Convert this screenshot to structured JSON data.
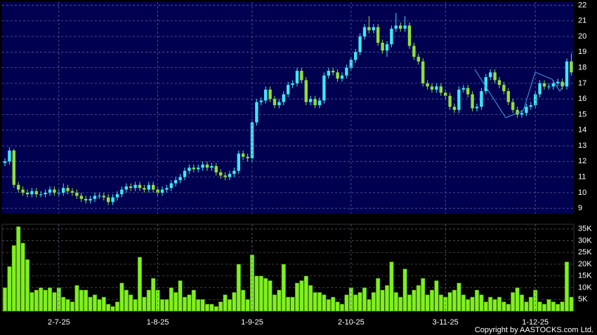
{
  "chart_data": [
    {
      "type": "candlestick",
      "up_color": "#3ee6f5",
      "down_color": "#8fe03a",
      "background": "#000050",
      "grid": true,
      "ylim": [
        8.65,
        22.2
      ],
      "yticks": [
        9,
        10,
        11,
        12,
        13,
        14,
        15,
        16,
        17,
        18,
        19,
        20,
        21,
        22
      ],
      "open": [
        11.9,
        12.0,
        12.7,
        10.5,
        10.2,
        10.0,
        9.9,
        10.1,
        9.9,
        9.9,
        10.0,
        10.2,
        10.0,
        10.0,
        10.3,
        10.1,
        10.0,
        9.8,
        9.6,
        9.5,
        9.6,
        9.8,
        9.8,
        9.7,
        9.4,
        9.7,
        9.9,
        10.2,
        10.4,
        10.3,
        10.5,
        10.3,
        10.2,
        10.5,
        10.2,
        10.0,
        10.2,
        10.3,
        10.6,
        10.8,
        11.0,
        11.4,
        11.6,
        11.5,
        11.6,
        11.8,
        11.6,
        11.7,
        11.3,
        11.1,
        11.0,
        11.2,
        11.4,
        12.5,
        12.3,
        12.2,
        14.5,
        15.8,
        15.9,
        16.6,
        16.0,
        15.6,
        15.8,
        16.3,
        16.9,
        17.0,
        17.8,
        17.2,
        15.8,
        16.0,
        15.6,
        15.9,
        17.5,
        17.8,
        17.7,
        17.3,
        17.5,
        18.0,
        18.5,
        19.0,
        20.0,
        20.6,
        20.4,
        20.6,
        19.6,
        19.1,
        19.5,
        20.5,
        20.7,
        20.5,
        20.7,
        19.4,
        18.7,
        18.4,
        17.0,
        16.8,
        16.6,
        16.8,
        16.4,
        16.2,
        15.5,
        15.3,
        16.6,
        16.7,
        16.3,
        15.4,
        15.5,
        16.5,
        17.4,
        17.7,
        17.2,
        16.9,
        16.5,
        15.8,
        15.3,
        15.0,
        15.1,
        15.5,
        15.6,
        16.3,
        17.0,
        16.8,
        16.8,
        17.0,
        17.1,
        16.8,
        18.4
      ],
      "high": [
        12.2,
        12.9,
        12.8,
        10.7,
        10.4,
        10.2,
        10.3,
        10.3,
        10.1,
        10.2,
        10.4,
        10.4,
        10.2,
        10.6,
        10.5,
        10.3,
        10.2,
        10.0,
        9.8,
        9.8,
        10.0,
        10.0,
        10.0,
        9.9,
        9.9,
        10.1,
        10.4,
        10.6,
        10.6,
        10.7,
        10.7,
        10.5,
        10.7,
        10.7,
        10.4,
        10.4,
        10.5,
        10.8,
        11.0,
        11.2,
        11.6,
        11.8,
        11.8,
        11.8,
        12.0,
        12.0,
        11.9,
        11.9,
        11.5,
        11.3,
        11.4,
        11.6,
        12.7,
        12.7,
        12.5,
        14.7,
        16.0,
        16.1,
        16.8,
        16.8,
        16.2,
        16.0,
        16.5,
        17.1,
        17.2,
        18.0,
        18.0,
        17.4,
        16.2,
        16.2,
        16.1,
        17.7,
        18.0,
        18.0,
        17.9,
        17.7,
        18.2,
        18.7,
        19.2,
        20.2,
        20.8,
        21.3,
        20.8,
        20.8,
        19.8,
        19.7,
        20.7,
        21.5,
        20.9,
        21.3,
        20.9,
        19.6,
        18.9,
        18.6,
        17.2,
        17.0,
        17.0,
        17.0,
        16.6,
        16.4,
        15.7,
        16.8,
        16.9,
        16.9,
        16.5,
        15.7,
        16.7,
        17.6,
        17.9,
        17.9,
        17.4,
        17.1,
        16.7,
        16.0,
        15.5,
        15.3,
        15.7,
        15.8,
        16.5,
        17.2,
        17.2,
        17.0,
        17.2,
        17.3,
        17.3,
        18.6,
        18.9
      ],
      "low": [
        11.7,
        11.8,
        10.3,
        10.0,
        9.8,
        9.7,
        9.7,
        9.7,
        9.7,
        9.7,
        9.8,
        9.8,
        9.8,
        9.8,
        9.9,
        9.8,
        9.6,
        9.4,
        9.3,
        9.3,
        9.4,
        9.6,
        9.5,
        9.2,
        9.2,
        9.5,
        9.7,
        10.0,
        10.1,
        10.1,
        10.1,
        10.0,
        10.0,
        10.0,
        9.8,
        9.8,
        10.0,
        10.1,
        10.4,
        10.6,
        10.8,
        11.2,
        11.3,
        11.3,
        11.4,
        11.4,
        11.4,
        11.1,
        10.9,
        10.8,
        10.8,
        11.0,
        11.2,
        12.1,
        12.0,
        12.0,
        14.3,
        15.6,
        15.7,
        15.8,
        15.4,
        15.4,
        15.6,
        16.1,
        16.7,
        16.8,
        17.0,
        15.6,
        15.6,
        15.4,
        15.4,
        15.7,
        17.3,
        17.5,
        17.1,
        17.1,
        17.3,
        17.8,
        18.3,
        18.8,
        19.8,
        20.2,
        20.2,
        19.4,
        18.9,
        18.7,
        19.3,
        20.3,
        20.3,
        20.3,
        19.2,
        18.5,
        18.2,
        16.8,
        16.6,
        16.4,
        16.4,
        16.2,
        16.0,
        15.3,
        15.1,
        15.1,
        16.4,
        16.1,
        15.2,
        15.2,
        15.3,
        16.3,
        17.2,
        17.0,
        16.7,
        16.3,
        15.6,
        15.1,
        14.8,
        14.8,
        14.9,
        15.3,
        15.4,
        16.1,
        16.6,
        16.6,
        16.6,
        16.8,
        16.6,
        16.6,
        17.5
      ],
      "close": [
        12.0,
        12.7,
        10.5,
        10.2,
        10.0,
        9.9,
        10.1,
        9.9,
        9.9,
        10.0,
        10.2,
        10.0,
        10.0,
        10.3,
        10.1,
        10.0,
        9.8,
        9.6,
        9.5,
        9.6,
        9.8,
        9.8,
        9.7,
        9.4,
        9.7,
        9.9,
        10.2,
        10.4,
        10.3,
        10.5,
        10.3,
        10.2,
        10.5,
        10.2,
        10.0,
        10.2,
        10.3,
        10.6,
        10.8,
        11.0,
        11.4,
        11.6,
        11.5,
        11.6,
        11.8,
        11.6,
        11.7,
        11.3,
        11.1,
        11.0,
        11.2,
        11.4,
        12.5,
        12.3,
        12.2,
        14.5,
        15.8,
        15.9,
        16.6,
        16.0,
        15.6,
        15.8,
        16.3,
        16.9,
        17.0,
        17.8,
        17.2,
        15.8,
        16.0,
        15.6,
        15.9,
        17.5,
        17.8,
        17.7,
        17.3,
        17.5,
        18.0,
        18.5,
        19.0,
        20.0,
        20.6,
        20.4,
        20.6,
        19.6,
        19.1,
        19.5,
        20.5,
        20.7,
        20.5,
        20.7,
        19.4,
        18.7,
        18.4,
        17.0,
        16.8,
        16.6,
        16.8,
        16.4,
        16.2,
        15.5,
        15.3,
        16.6,
        16.7,
        16.3,
        15.4,
        15.5,
        16.5,
        17.4,
        17.7,
        17.2,
        16.9,
        16.5,
        15.8,
        15.3,
        15.0,
        15.1,
        15.5,
        15.6,
        16.3,
        17.0,
        16.8,
        16.8,
        17.0,
        17.1,
        16.8,
        18.4,
        17.7
      ]
    },
    {
      "type": "bar",
      "color": "#7ff020",
      "grid": true,
      "ylim": [
        0,
        37000
      ],
      "yticks": [
        {
          "value": 5000,
          "label": "5K"
        },
        {
          "value": 10000,
          "label": "10K"
        },
        {
          "value": 15000,
          "label": "15K"
        },
        {
          "value": 20000,
          "label": "20K"
        },
        {
          "value": 25000,
          "label": "25K"
        },
        {
          "value": 30000,
          "label": "30K"
        },
        {
          "value": 35000,
          "label": "35K"
        }
      ],
      "categories": [
        null,
        null,
        null,
        null,
        null,
        null,
        null,
        null,
        null,
        null,
        null,
        null,
        "2-7-25",
        null,
        null,
        null,
        null,
        null,
        null,
        null,
        null,
        null,
        null,
        null,
        null,
        null,
        null,
        null,
        null,
        null,
        null,
        null,
        null,
        null,
        "1-8-25",
        null,
        null,
        null,
        null,
        null,
        null,
        null,
        null,
        null,
        null,
        null,
        null,
        null,
        null,
        null,
        null,
        null,
        null,
        null,
        null,
        "1-9-25",
        null,
        null,
        null,
        null,
        null,
        null,
        null,
        null,
        null,
        null,
        null,
        null,
        null,
        null,
        null,
        null,
        null,
        null,
        null,
        null,
        null,
        "2-10-25",
        null,
        null,
        null,
        null,
        null,
        null,
        null,
        null,
        null,
        null,
        null,
        null,
        null,
        null,
        null,
        null,
        null,
        null,
        null,
        null,
        "3-11-25",
        null,
        null,
        null,
        null,
        null,
        null,
        null,
        null,
        null,
        null,
        null,
        null,
        null,
        null,
        null,
        null,
        null,
        null,
        null,
        "1-12-25",
        null,
        null,
        null,
        null,
        null,
        null,
        null,
        null
      ],
      "values": [
        10000,
        19000,
        28000,
        36000,
        29000,
        22000,
        8000,
        9000,
        10000,
        9000,
        10000,
        8000,
        10000,
        6000,
        5000,
        4000,
        11000,
        9000,
        9000,
        6000,
        7000,
        5000,
        6000,
        3000,
        2000,
        4000,
        12000,
        9000,
        7000,
        5000,
        23000,
        6000,
        9000,
        14000,
        9000,
        5000,
        5000,
        10000,
        8000,
        13000,
        6000,
        7000,
        9000,
        5000,
        5000,
        3000,
        3000,
        2000,
        4000,
        7000,
        5000,
        8000,
        20000,
        9000,
        5000,
        24000,
        15000,
        15000,
        14000,
        13000,
        7000,
        9000,
        20000,
        6000,
        6000,
        12000,
        13000,
        15000,
        11000,
        8000,
        8000,
        7000,
        5000,
        6000,
        4000,
        3000,
        7000,
        10000,
        7000,
        8000,
        10000,
        5000,
        8000,
        14000,
        9000,
        11000,
        21000,
        8000,
        6000,
        18000,
        7000,
        9000,
        11000,
        14000,
        7000,
        9000,
        13000,
        7000,
        6000,
        8000,
        9000,
        12000,
        7000,
        5000,
        6000,
        9000,
        7000,
        4000,
        6000,
        5000,
        6000,
        4000,
        3000,
        8000,
        10000,
        7000,
        4000,
        6000,
        9000,
        4000,
        3000,
        5000,
        4000,
        3000,
        4000,
        21000,
        6000
      ]
    }
  ],
  "copyright": "Copyright by AASTOCKS.com Ltd."
}
